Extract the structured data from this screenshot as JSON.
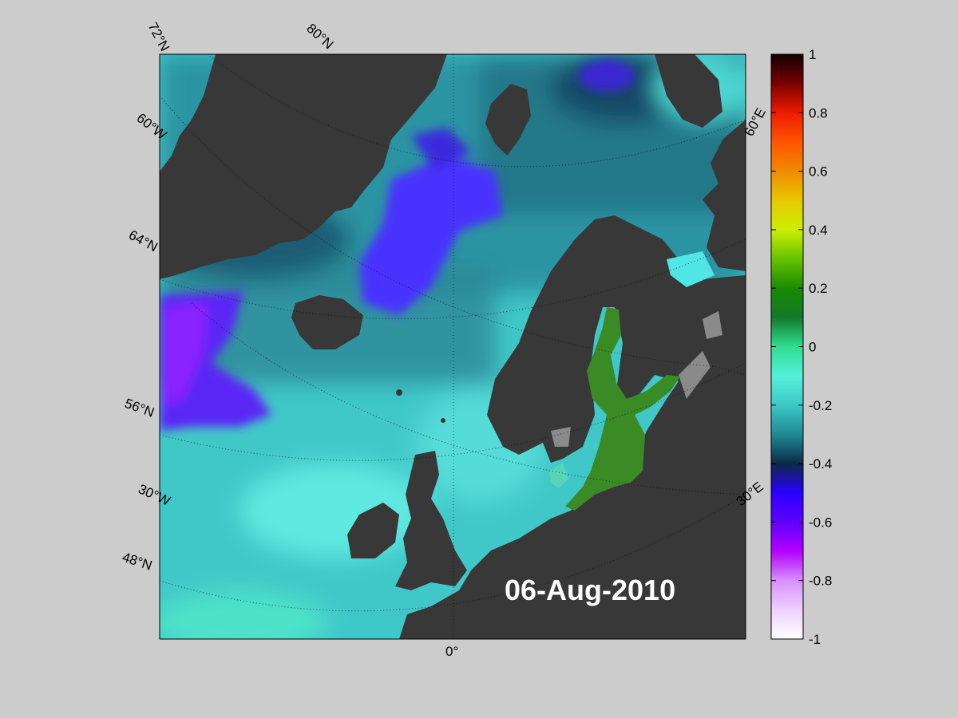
{
  "map": {
    "date_label": "06-Aug-2010",
    "lat_labels": [
      "72°N",
      "80°N",
      "64°N",
      "56°N",
      "48°N"
    ],
    "lon_labels": [
      "60°W",
      "30°W",
      "0°",
      "30°E",
      "60°E"
    ]
  },
  "colorbar": {
    "ticks": [
      "1",
      "0.8",
      "0.6",
      "0.4",
      "0.2",
      "0",
      "-0.2",
      "-0.4",
      "-0.6",
      "-0.8",
      "-1"
    ],
    "stops": [
      {
        "v": 1.0,
        "c": "#120000"
      },
      {
        "v": 0.9,
        "c": "#7a0000"
      },
      {
        "v": 0.8,
        "c": "#ee1a00"
      },
      {
        "v": 0.7,
        "c": "#ff5500"
      },
      {
        "v": 0.6,
        "c": "#f08a00"
      },
      {
        "v": 0.5,
        "c": "#e8c800"
      },
      {
        "v": 0.4,
        "c": "#ccee00"
      },
      {
        "v": 0.3,
        "c": "#66c200"
      },
      {
        "v": 0.2,
        "c": "#1a8a00"
      },
      {
        "v": 0.1,
        "c": "#117a2a"
      },
      {
        "v": 0.0,
        "c": "#30dd90"
      },
      {
        "v": -0.1,
        "c": "#55f0d8"
      },
      {
        "v": -0.2,
        "c": "#3cc8c8"
      },
      {
        "v": -0.3,
        "c": "#1e8a94"
      },
      {
        "v": -0.4,
        "c": "#0b2a46"
      },
      {
        "v": -0.5,
        "c": "#2a00ff"
      },
      {
        "v": -0.6,
        "c": "#6000ff"
      },
      {
        "v": -0.7,
        "c": "#b400ff"
      },
      {
        "v": -0.8,
        "c": "#d890ff"
      },
      {
        "v": -0.9,
        "c": "#edd0ff"
      },
      {
        "v": -1.0,
        "c": "#ffffff"
      }
    ]
  },
  "colors": {
    "background": "#cccccc",
    "land": "#383838",
    "ice": "#8a8a8a",
    "ocean_base": "#40c8c8",
    "anomaly_negative": "#4a30ff",
    "anomaly_violet": "#7a20ff",
    "anomaly_positive": "#3a8a25"
  }
}
